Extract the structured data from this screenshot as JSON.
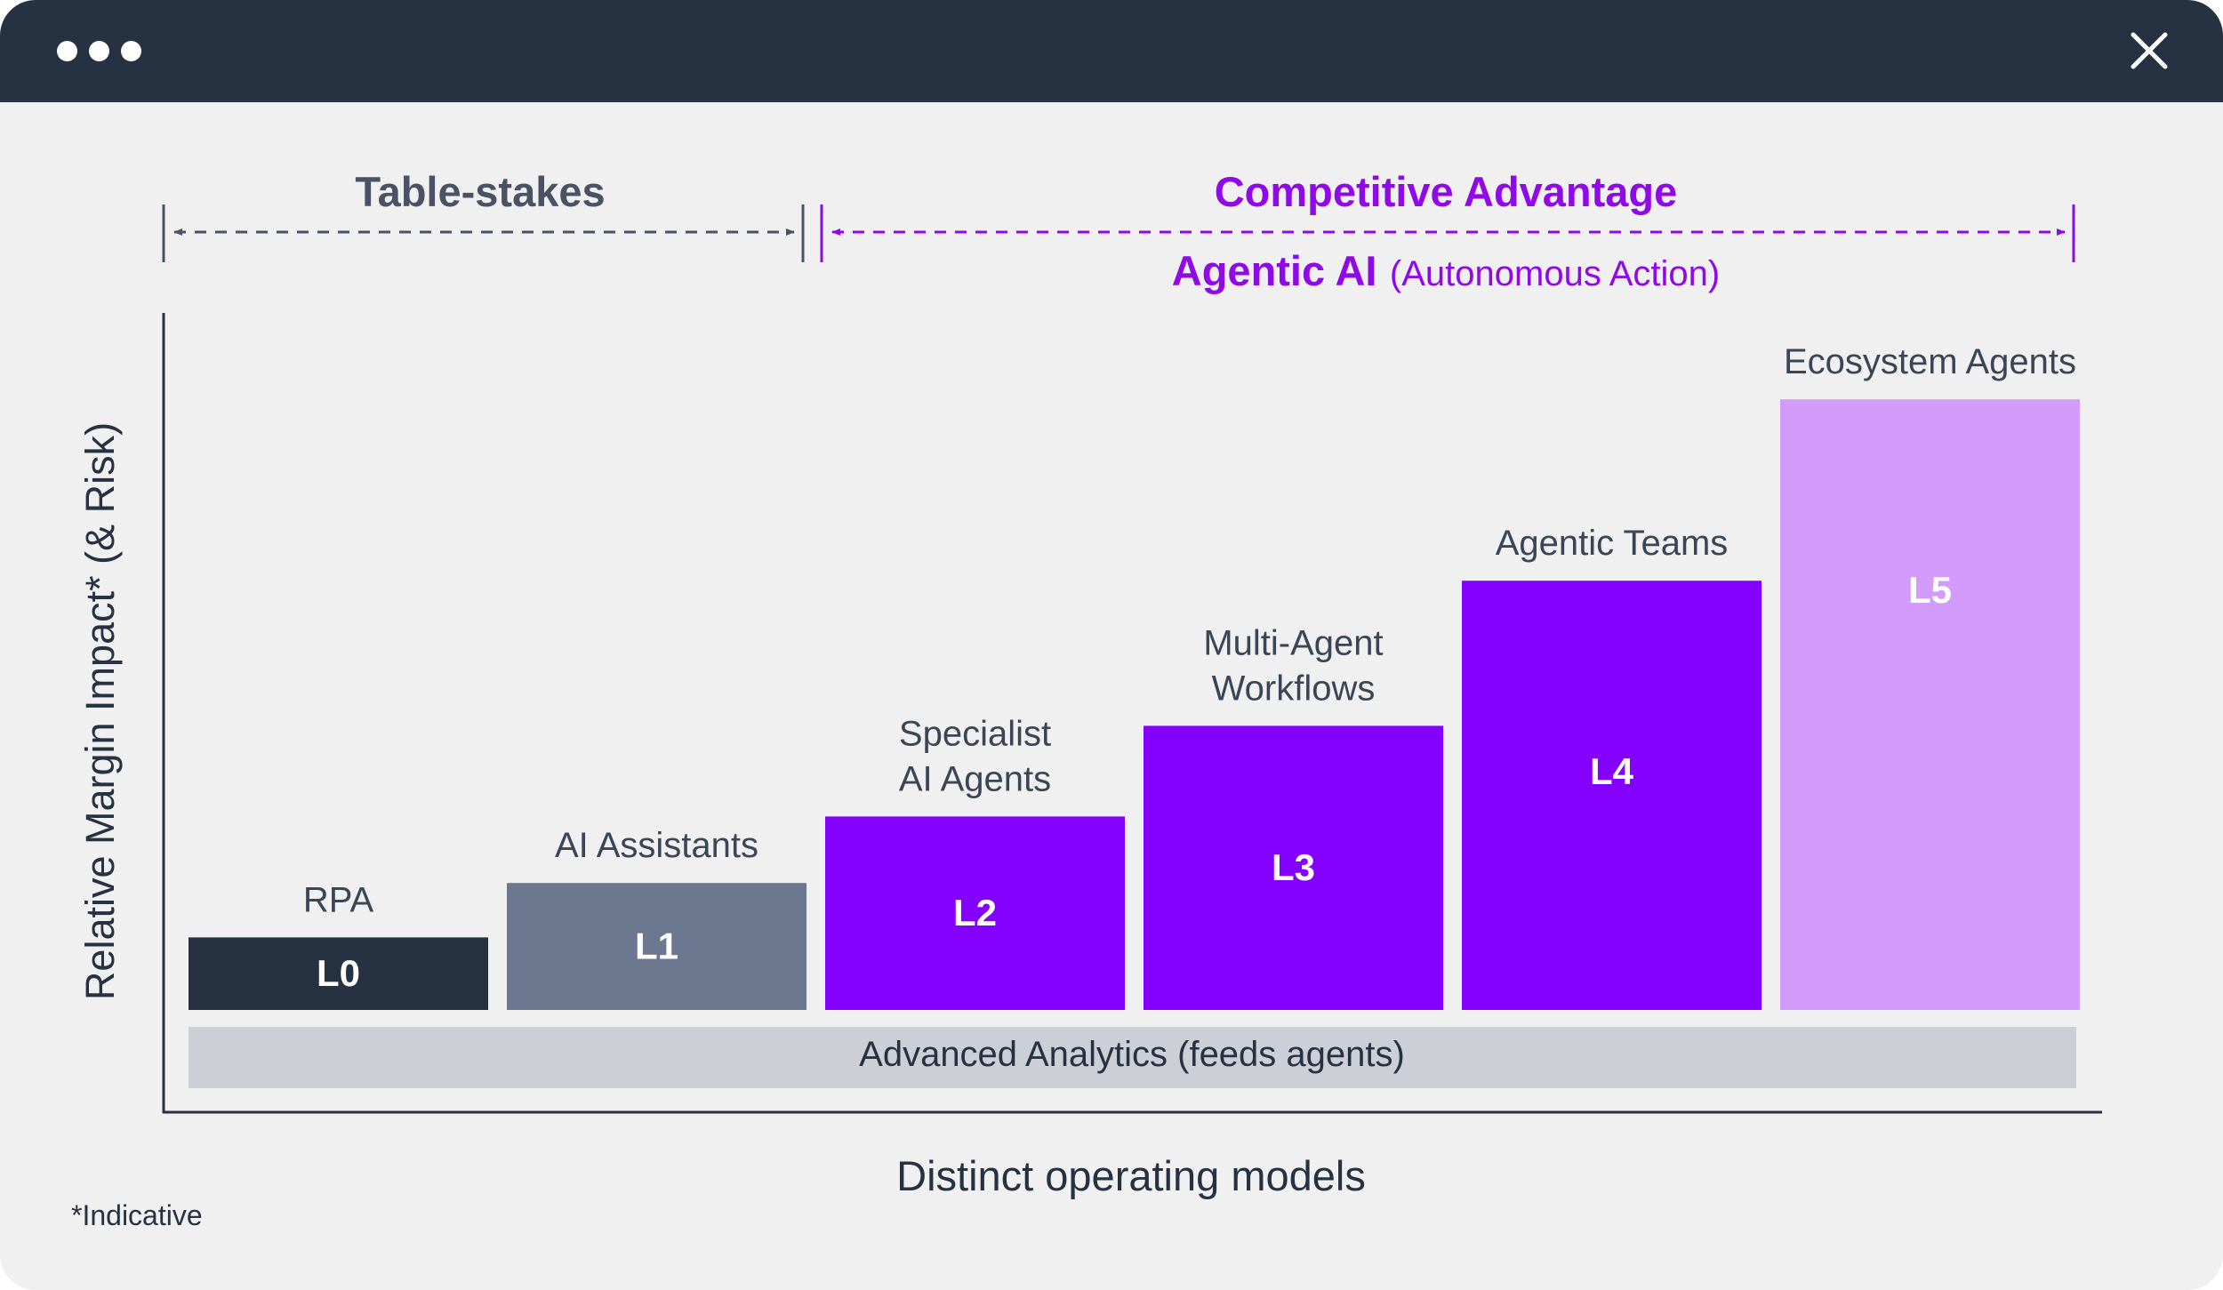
{
  "window": {
    "close_icon": "close-icon",
    "menu_icon": "three-dots-icon"
  },
  "brackets": {
    "table_stakes": "Table-stakes",
    "competitive": "Competitive Advantage",
    "agentic_bold": "Agentic AI",
    "agentic_paren": "(Autonomous Action)"
  },
  "footnote": "*Indicative",
  "colors": {
    "dark": "#263242",
    "slate": "#6b7890",
    "purple": "#8400ff",
    "lilac": "#d39bfb",
    "label": "#3a4556",
    "axis": "#263242",
    "analytics": "#cdcfd6",
    "bracket_gray": "#4a5365",
    "bracket_purple": "#8f0ae6"
  },
  "chart_data": {
    "type": "bar",
    "title": "",
    "xlabel": "Distinct operating models",
    "ylabel": "Relative Margin Impact* (& Risk)",
    "ylim": [
      0,
      100
    ],
    "categories": [
      "RPA",
      "AI Assistants",
      "Specialist AI Agents",
      "Multi-Agent Workflows",
      "Agentic Teams",
      "Ecosystem Agents"
    ],
    "bars": [
      {
        "level": "L0",
        "label_lines": [
          "RPA"
        ],
        "value": 12,
        "color": "#263242"
      },
      {
        "level": "L1",
        "label_lines": [
          "AI Assistants"
        ],
        "value": 21,
        "color": "#6b7890"
      },
      {
        "level": "L2",
        "label_lines": [
          "Specialist",
          "AI Agents"
        ],
        "value": 32,
        "color": "#8400ff"
      },
      {
        "level": "L3",
        "label_lines": [
          "Multi-Agent",
          "Workflows"
        ],
        "value": 47,
        "color": "#8400ff"
      },
      {
        "level": "L4",
        "label_lines": [
          "Agentic Teams"
        ],
        "value": 71,
        "color": "#8400ff"
      },
      {
        "level": "L5",
        "label_lines": [
          "Ecosystem Agents"
        ],
        "value": 101,
        "color": "#d39bfb"
      }
    ],
    "base_band": "Advanced Analytics (feeds agents)"
  }
}
